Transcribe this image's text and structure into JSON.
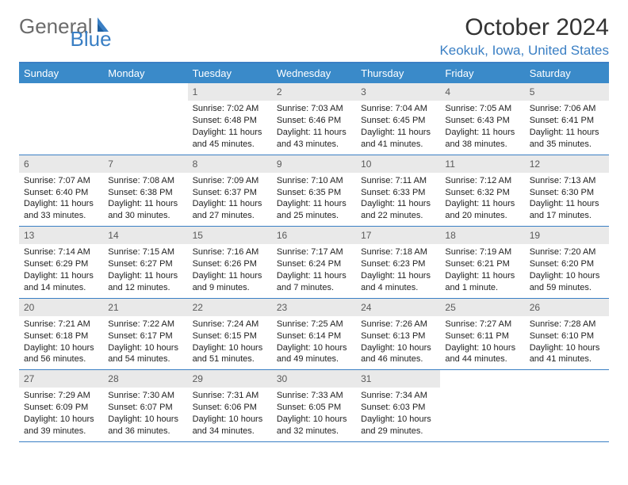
{
  "logo": {
    "text1": "General",
    "text2": "Blue",
    "icon_color": "#3a7fc4"
  },
  "title": "October 2024",
  "location": "Keokuk, Iowa, United States",
  "colors": {
    "header_bg": "#3a8ac9",
    "border": "#3a7fc4",
    "daynum_bg": "#e9e9e9",
    "text": "#222222"
  },
  "day_headers": [
    "Sunday",
    "Monday",
    "Tuesday",
    "Wednesday",
    "Thursday",
    "Friday",
    "Saturday"
  ],
  "weeks": [
    [
      {
        "n": "",
        "sr": "",
        "ss": "",
        "dl": ""
      },
      {
        "n": "",
        "sr": "",
        "ss": "",
        "dl": ""
      },
      {
        "n": "1",
        "sr": "Sunrise: 7:02 AM",
        "ss": "Sunset: 6:48 PM",
        "dl": "Daylight: 11 hours and 45 minutes."
      },
      {
        "n": "2",
        "sr": "Sunrise: 7:03 AM",
        "ss": "Sunset: 6:46 PM",
        "dl": "Daylight: 11 hours and 43 minutes."
      },
      {
        "n": "3",
        "sr": "Sunrise: 7:04 AM",
        "ss": "Sunset: 6:45 PM",
        "dl": "Daylight: 11 hours and 41 minutes."
      },
      {
        "n": "4",
        "sr": "Sunrise: 7:05 AM",
        "ss": "Sunset: 6:43 PM",
        "dl": "Daylight: 11 hours and 38 minutes."
      },
      {
        "n": "5",
        "sr": "Sunrise: 7:06 AM",
        "ss": "Sunset: 6:41 PM",
        "dl": "Daylight: 11 hours and 35 minutes."
      }
    ],
    [
      {
        "n": "6",
        "sr": "Sunrise: 7:07 AM",
        "ss": "Sunset: 6:40 PM",
        "dl": "Daylight: 11 hours and 33 minutes."
      },
      {
        "n": "7",
        "sr": "Sunrise: 7:08 AM",
        "ss": "Sunset: 6:38 PM",
        "dl": "Daylight: 11 hours and 30 minutes."
      },
      {
        "n": "8",
        "sr": "Sunrise: 7:09 AM",
        "ss": "Sunset: 6:37 PM",
        "dl": "Daylight: 11 hours and 27 minutes."
      },
      {
        "n": "9",
        "sr": "Sunrise: 7:10 AM",
        "ss": "Sunset: 6:35 PM",
        "dl": "Daylight: 11 hours and 25 minutes."
      },
      {
        "n": "10",
        "sr": "Sunrise: 7:11 AM",
        "ss": "Sunset: 6:33 PM",
        "dl": "Daylight: 11 hours and 22 minutes."
      },
      {
        "n": "11",
        "sr": "Sunrise: 7:12 AM",
        "ss": "Sunset: 6:32 PM",
        "dl": "Daylight: 11 hours and 20 minutes."
      },
      {
        "n": "12",
        "sr": "Sunrise: 7:13 AM",
        "ss": "Sunset: 6:30 PM",
        "dl": "Daylight: 11 hours and 17 minutes."
      }
    ],
    [
      {
        "n": "13",
        "sr": "Sunrise: 7:14 AM",
        "ss": "Sunset: 6:29 PM",
        "dl": "Daylight: 11 hours and 14 minutes."
      },
      {
        "n": "14",
        "sr": "Sunrise: 7:15 AM",
        "ss": "Sunset: 6:27 PM",
        "dl": "Daylight: 11 hours and 12 minutes."
      },
      {
        "n": "15",
        "sr": "Sunrise: 7:16 AM",
        "ss": "Sunset: 6:26 PM",
        "dl": "Daylight: 11 hours and 9 minutes."
      },
      {
        "n": "16",
        "sr": "Sunrise: 7:17 AM",
        "ss": "Sunset: 6:24 PM",
        "dl": "Daylight: 11 hours and 7 minutes."
      },
      {
        "n": "17",
        "sr": "Sunrise: 7:18 AM",
        "ss": "Sunset: 6:23 PM",
        "dl": "Daylight: 11 hours and 4 minutes."
      },
      {
        "n": "18",
        "sr": "Sunrise: 7:19 AM",
        "ss": "Sunset: 6:21 PM",
        "dl": "Daylight: 11 hours and 1 minute."
      },
      {
        "n": "19",
        "sr": "Sunrise: 7:20 AM",
        "ss": "Sunset: 6:20 PM",
        "dl": "Daylight: 10 hours and 59 minutes."
      }
    ],
    [
      {
        "n": "20",
        "sr": "Sunrise: 7:21 AM",
        "ss": "Sunset: 6:18 PM",
        "dl": "Daylight: 10 hours and 56 minutes."
      },
      {
        "n": "21",
        "sr": "Sunrise: 7:22 AM",
        "ss": "Sunset: 6:17 PM",
        "dl": "Daylight: 10 hours and 54 minutes."
      },
      {
        "n": "22",
        "sr": "Sunrise: 7:24 AM",
        "ss": "Sunset: 6:15 PM",
        "dl": "Daylight: 10 hours and 51 minutes."
      },
      {
        "n": "23",
        "sr": "Sunrise: 7:25 AM",
        "ss": "Sunset: 6:14 PM",
        "dl": "Daylight: 10 hours and 49 minutes."
      },
      {
        "n": "24",
        "sr": "Sunrise: 7:26 AM",
        "ss": "Sunset: 6:13 PM",
        "dl": "Daylight: 10 hours and 46 minutes."
      },
      {
        "n": "25",
        "sr": "Sunrise: 7:27 AM",
        "ss": "Sunset: 6:11 PM",
        "dl": "Daylight: 10 hours and 44 minutes."
      },
      {
        "n": "26",
        "sr": "Sunrise: 7:28 AM",
        "ss": "Sunset: 6:10 PM",
        "dl": "Daylight: 10 hours and 41 minutes."
      }
    ],
    [
      {
        "n": "27",
        "sr": "Sunrise: 7:29 AM",
        "ss": "Sunset: 6:09 PM",
        "dl": "Daylight: 10 hours and 39 minutes."
      },
      {
        "n": "28",
        "sr": "Sunrise: 7:30 AM",
        "ss": "Sunset: 6:07 PM",
        "dl": "Daylight: 10 hours and 36 minutes."
      },
      {
        "n": "29",
        "sr": "Sunrise: 7:31 AM",
        "ss": "Sunset: 6:06 PM",
        "dl": "Daylight: 10 hours and 34 minutes."
      },
      {
        "n": "30",
        "sr": "Sunrise: 7:33 AM",
        "ss": "Sunset: 6:05 PM",
        "dl": "Daylight: 10 hours and 32 minutes."
      },
      {
        "n": "31",
        "sr": "Sunrise: 7:34 AM",
        "ss": "Sunset: 6:03 PM",
        "dl": "Daylight: 10 hours and 29 minutes."
      },
      {
        "n": "",
        "sr": "",
        "ss": "",
        "dl": ""
      },
      {
        "n": "",
        "sr": "",
        "ss": "",
        "dl": ""
      }
    ]
  ]
}
